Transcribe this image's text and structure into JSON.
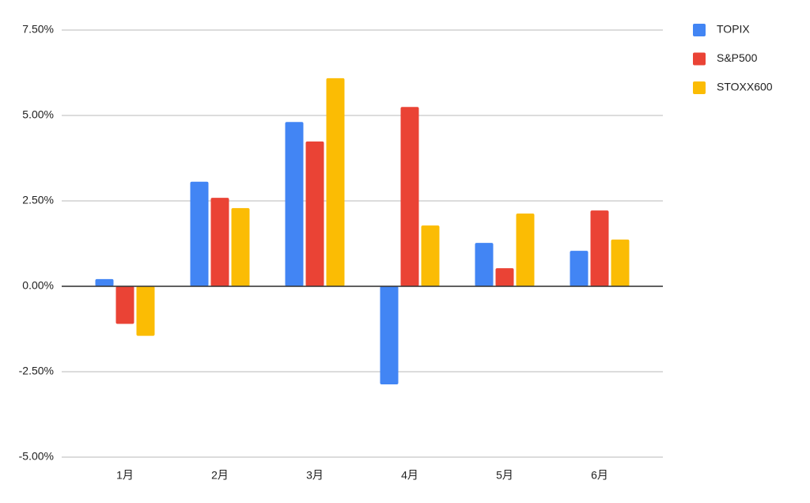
{
  "chart_data": {
    "type": "bar",
    "categories": [
      "1月",
      "2月",
      "3月",
      "4月",
      "5月",
      "6月"
    ],
    "series": [
      {
        "name": "TOPIX",
        "color": "#4285f4",
        "values": [
          0.21,
          3.06,
          4.81,
          -2.87,
          1.27,
          1.04
        ]
      },
      {
        "name": "S&P500",
        "color": "#ea4335",
        "values": [
          -1.1,
          2.59,
          4.24,
          5.25,
          0.53,
          2.22
        ]
      },
      {
        "name": "STOXX600",
        "color": "#fbbc04",
        "values": [
          -1.45,
          2.29,
          6.09,
          1.78,
          2.13,
          1.37
        ]
      }
    ],
    "ylim": [
      -5,
      7.5
    ],
    "yticks": [
      {
        "value": -5,
        "label": "-5.00%"
      },
      {
        "value": -2.5,
        "label": "-2.50%"
      },
      {
        "value": 0,
        "label": "0.00%"
      },
      {
        "value": 2.5,
        "label": "2.50%"
      },
      {
        "value": 5,
        "label": "5.00%"
      },
      {
        "value": 7.5,
        "label": "7.50%"
      }
    ],
    "grid": true,
    "legend": "right"
  }
}
